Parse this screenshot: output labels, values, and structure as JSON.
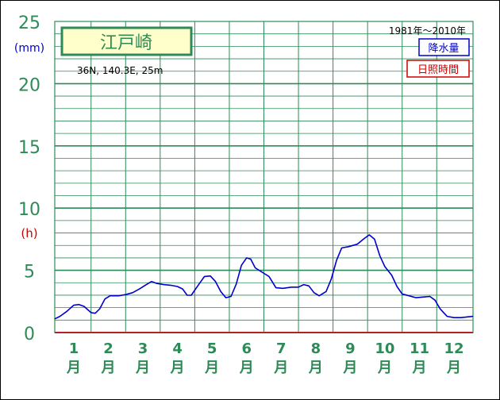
{
  "chart_data": {
    "type": "line",
    "station": {
      "name": "江戸崎",
      "location": "36N, 140.3E, 25m",
      "period": "1981年〜2010年"
    },
    "legend": [
      "降水量",
      "日照時間"
    ],
    "y_left_unit": "(mm)",
    "y_right_unit": "(h)",
    "y_ticks": [
      0,
      5,
      10,
      15,
      20,
      25
    ],
    "ylim": [
      0,
      25
    ],
    "x_ticks": [
      {
        "num": "1",
        "unit": "月"
      },
      {
        "num": "2",
        "unit": "月"
      },
      {
        "num": "3",
        "unit": "月"
      },
      {
        "num": "4",
        "unit": "月"
      },
      {
        "num": "5",
        "unit": "月"
      },
      {
        "num": "6",
        "unit": "月"
      },
      {
        "num": "7",
        "unit": "月"
      },
      {
        "num": "8",
        "unit": "月"
      },
      {
        "num": "9",
        "unit": "月"
      },
      {
        "num": "10",
        "unit": "月"
      },
      {
        "num": "11",
        "unit": "月"
      },
      {
        "num": "12",
        "unit": "月"
      }
    ],
    "xlim": [
      0.45,
      12.55
    ],
    "series": [
      {
        "name": "降水量",
        "color": "#0000cc",
        "points": [
          [
            0.45,
            1.1
          ],
          [
            0.6,
            1.3
          ],
          [
            0.8,
            1.7
          ],
          [
            1.0,
            2.2
          ],
          [
            1.15,
            2.25
          ],
          [
            1.3,
            2.1
          ],
          [
            1.5,
            1.6
          ],
          [
            1.62,
            1.55
          ],
          [
            1.75,
            1.9
          ],
          [
            1.9,
            2.7
          ],
          [
            2.05,
            2.95
          ],
          [
            2.3,
            2.95
          ],
          [
            2.5,
            3.05
          ],
          [
            2.7,
            3.2
          ],
          [
            2.9,
            3.5
          ],
          [
            3.1,
            3.85
          ],
          [
            3.25,
            4.1
          ],
          [
            3.4,
            3.95
          ],
          [
            3.6,
            3.85
          ],
          [
            3.8,
            3.8
          ],
          [
            4.0,
            3.7
          ],
          [
            4.15,
            3.5
          ],
          [
            4.28,
            3.0
          ],
          [
            4.4,
            3.0
          ],
          [
            4.6,
            3.8
          ],
          [
            4.78,
            4.5
          ],
          [
            4.95,
            4.55
          ],
          [
            5.1,
            4.1
          ],
          [
            5.25,
            3.3
          ],
          [
            5.4,
            2.8
          ],
          [
            5.55,
            2.9
          ],
          [
            5.7,
            3.9
          ],
          [
            5.85,
            5.4
          ],
          [
            6.0,
            6.0
          ],
          [
            6.12,
            5.9
          ],
          [
            6.25,
            5.2
          ],
          [
            6.45,
            4.85
          ],
          [
            6.65,
            4.5
          ],
          [
            6.85,
            3.6
          ],
          [
            7.05,
            3.55
          ],
          [
            7.3,
            3.65
          ],
          [
            7.5,
            3.65
          ],
          [
            7.65,
            3.85
          ],
          [
            7.8,
            3.75
          ],
          [
            7.95,
            3.2
          ],
          [
            8.1,
            2.95
          ],
          [
            8.3,
            3.3
          ],
          [
            8.45,
            4.3
          ],
          [
            8.6,
            5.8
          ],
          [
            8.75,
            6.8
          ],
          [
            8.95,
            6.9
          ],
          [
            9.2,
            7.1
          ],
          [
            9.4,
            7.55
          ],
          [
            9.55,
            7.85
          ],
          [
            9.7,
            7.5
          ],
          [
            9.85,
            6.2
          ],
          [
            10.0,
            5.3
          ],
          [
            10.2,
            4.6
          ],
          [
            10.35,
            3.7
          ],
          [
            10.5,
            3.1
          ],
          [
            10.7,
            2.95
          ],
          [
            10.9,
            2.8
          ],
          [
            11.1,
            2.85
          ],
          [
            11.3,
            2.9
          ],
          [
            11.45,
            2.6
          ],
          [
            11.6,
            1.9
          ],
          [
            11.8,
            1.3
          ],
          [
            12.0,
            1.2
          ],
          [
            12.2,
            1.2
          ],
          [
            12.55,
            1.3
          ]
        ]
      },
      {
        "name": "日照時間",
        "color": "#b22222",
        "points": [
          [
            0.45,
            0
          ],
          [
            12.55,
            0
          ]
        ]
      }
    ]
  }
}
